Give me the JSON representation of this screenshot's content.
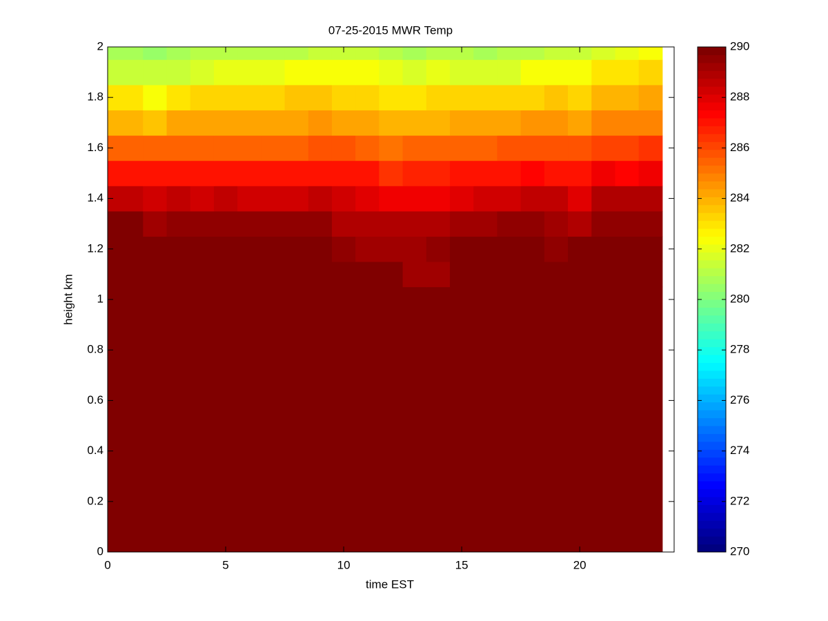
{
  "chart_data": {
    "type": "heatmap",
    "title": "07-25-2015 MWR Temp",
    "xlabel": "time EST",
    "ylabel": "height km",
    "colormap": "jet",
    "clim": [
      270,
      290
    ],
    "colorbar_ticks": [
      270,
      272,
      274,
      276,
      278,
      280,
      282,
      284,
      286,
      288,
      290
    ],
    "xlim": [
      0,
      24
    ],
    "xticks": [
      0,
      5,
      10,
      15,
      20
    ],
    "ylim": [
      0,
      2
    ],
    "yticks": [
      0,
      0.2,
      0.4,
      0.6,
      0.8,
      1,
      1.2,
      1.4,
      1.6,
      1.8,
      2
    ],
    "x_edges": [
      0,
      1.5,
      2.5,
      3.5,
      4.5,
      5.5,
      6.5,
      7.5,
      8.5,
      9.5,
      10.5,
      11.5,
      12.5,
      13.5,
      14.5,
      15.5,
      16.5,
      17.5,
      18.5,
      19.5,
      20.5,
      21.5,
      22.5,
      23.5
    ],
    "y_edges": [
      0,
      1.05,
      1.15,
      1.25,
      1.35,
      1.45,
      1.55,
      1.65,
      1.75,
      1.85,
      1.95,
      2
    ],
    "z": [
      [
        291,
        291,
        291,
        291,
        291,
        291,
        291,
        291,
        291,
        291,
        291,
        291,
        291,
        291,
        291,
        291,
        291,
        291,
        291,
        291,
        291,
        291,
        291
      ],
      [
        290.5,
        290.5,
        290.5,
        290.5,
        290.5,
        290.5,
        290.5,
        290.5,
        290.5,
        290.5,
        290.5,
        290.5,
        289.5,
        289.5,
        290.5,
        290.5,
        290.5,
        290.5,
        290.5,
        290.5,
        290.5,
        290.5,
        290.5
      ],
      [
        290.5,
        290.5,
        290.5,
        290.5,
        290.5,
        290.5,
        290.5,
        290.5,
        290.5,
        289.7,
        289.5,
        289.3,
        289.5,
        289.7,
        290.5,
        290.5,
        290.5,
        290.5,
        289.6,
        290.5,
        290.5,
        290.5,
        290.5
      ],
      [
        290,
        289.5,
        289.7,
        289.7,
        289.7,
        289.7,
        289.7,
        289.6,
        289.8,
        289.2,
        289.2,
        289,
        289,
        289.2,
        289.3,
        289.5,
        289.6,
        289.6,
        289.4,
        289.2,
        289.8,
        289.8,
        289.8
      ],
      [
        288.8,
        288.5,
        288.7,
        288.4,
        288.7,
        288.4,
        288.4,
        288.5,
        288.7,
        288.5,
        288.2,
        287.8,
        287.8,
        287.8,
        288.1,
        288.3,
        288.4,
        288.8,
        288.6,
        288.1,
        289,
        289,
        289
      ],
      [
        287.3,
        287,
        287.2,
        287.2,
        287.2,
        287.2,
        287.2,
        287.2,
        287.2,
        287,
        287,
        286.6,
        286.7,
        286.9,
        287,
        287.2,
        287.2,
        287.5,
        287.3,
        287,
        287.8,
        287.6,
        287.8
      ],
      [
        285.6,
        285.4,
        285.7,
        285.7,
        285.7,
        285.7,
        285.7,
        285.7,
        286,
        285.9,
        285.6,
        285.3,
        285.4,
        285.6,
        285.6,
        285.6,
        285.8,
        286,
        286,
        285.9,
        286.3,
        286.3,
        286.5
      ],
      [
        284,
        283.7,
        284.2,
        284.2,
        284.3,
        284.3,
        284.3,
        284.3,
        284.5,
        284.3,
        284.3,
        284.1,
        283.9,
        284.1,
        284.2,
        284.2,
        284.4,
        284.6,
        284.6,
        284.3,
        284.8,
        284.8,
        285
      ],
      [
        283,
        282.5,
        283,
        283.2,
        283.4,
        283.4,
        283.4,
        283.6,
        283.6,
        283.4,
        283.4,
        283.1,
        283,
        283.2,
        283.2,
        283.2,
        283.3,
        283.4,
        283.6,
        283.4,
        283.9,
        283.9,
        284.3
      ],
      [
        281.5,
        281.3,
        281.5,
        281.8,
        282.1,
        282.1,
        282.1,
        282.3,
        282.4,
        282.4,
        282.4,
        282,
        281.8,
        282,
        281.7,
        281.6,
        281.8,
        282.3,
        282.3,
        282.4,
        282.9,
        282.9,
        283.3
      ],
      [
        280.8,
        280.5,
        280.7,
        281,
        281.2,
        281.2,
        281.2,
        281.2,
        281.3,
        281.3,
        281.3,
        281,
        280.9,
        281,
        281.1,
        280.9,
        281,
        281.2,
        281.3,
        281.4,
        281.9,
        282,
        282.4
      ]
    ]
  }
}
